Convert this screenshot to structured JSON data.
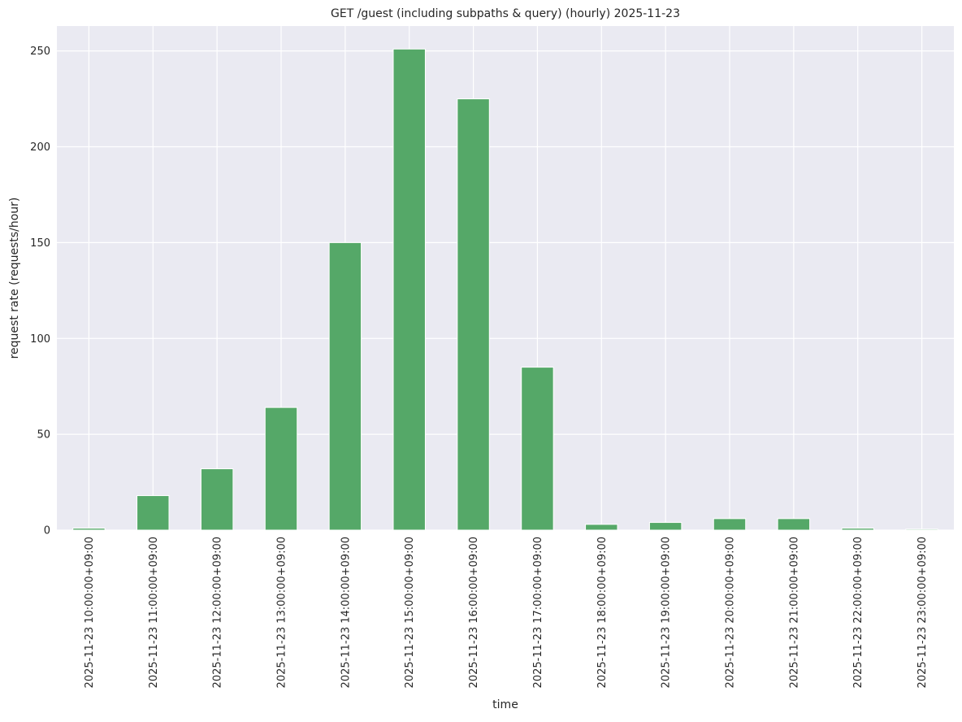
{
  "chart_data": {
    "type": "bar",
    "title": "GET /guest (including subpaths & query) (hourly) 2025-11-23",
    "xlabel": "time",
    "ylabel": "request rate (requests/hour)",
    "categories": [
      "2025-11-23 10:00:00+09:00",
      "2025-11-23 11:00:00+09:00",
      "2025-11-23 12:00:00+09:00",
      "2025-11-23 13:00:00+09:00",
      "2025-11-23 14:00:00+09:00",
      "2025-11-23 15:00:00+09:00",
      "2025-11-23 16:00:00+09:00",
      "2025-11-23 17:00:00+09:00",
      "2025-11-23 18:00:00+09:00",
      "2025-11-23 19:00:00+09:00",
      "2025-11-23 20:00:00+09:00",
      "2025-11-23 21:00:00+09:00",
      "2025-11-23 22:00:00+09:00",
      "2025-11-23 23:00:00+09:00"
    ],
    "values": [
      1,
      18,
      32,
      64,
      150,
      251,
      225,
      85,
      3,
      4,
      6,
      6,
      1,
      0.5
    ],
    "ylim": [
      0,
      263
    ],
    "yticks": [
      0,
      50,
      100,
      150,
      200,
      250
    ],
    "grid": true,
    "bar_color": "#55a868",
    "background_color": "#eaeaf2"
  }
}
